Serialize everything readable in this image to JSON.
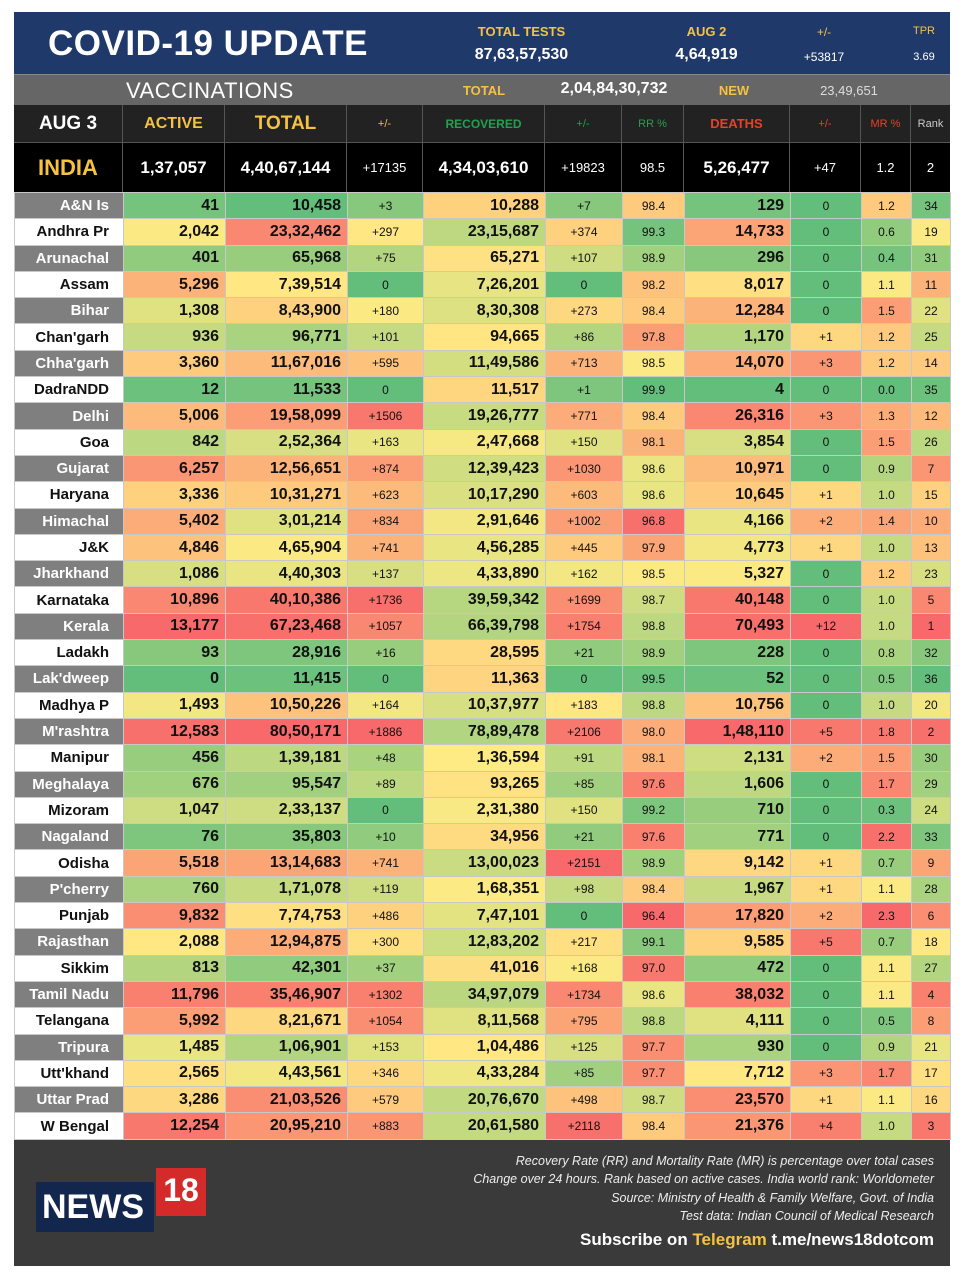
{
  "header": {
    "title": "COVID-19 UPDATE",
    "total_tests_label": "TOTAL TESTS",
    "total_tests": "87,63,57,530",
    "day_label": "AUG 2",
    "day_tests": "4,64,919",
    "change_label": "+/-",
    "change": "+53817",
    "tpr_label": "TPR",
    "tpr": "3.69"
  },
  "vaccinations": {
    "label": "VACCINATIONS",
    "total_label": "TOTAL",
    "total": "2,04,84,30,732",
    "new_label": "NEW",
    "new": "23,49,651"
  },
  "columns": {
    "date": "AUG 3",
    "active": "ACTIVE",
    "total": "TOTAL",
    "change1": "+/-",
    "recovered": "RECOVERED",
    "change2": "+/-",
    "rr": "RR %",
    "deaths": "DEATHS",
    "change3": "+/-",
    "mr": "MR %",
    "rank": "Rank"
  },
  "india": [
    "INDIA",
    "1,37,057",
    "4,40,67,144",
    "+17135",
    "4,34,03,610",
    "+19823",
    "98.5",
    "5,26,477",
    "+47",
    "1.2",
    "2"
  ],
  "rows": [
    [
      "A&N Is",
      "41",
      "10,458",
      "+3",
      "10,288",
      "+7",
      "98.4",
      "129",
      "0",
      "1.2",
      "34"
    ],
    [
      "Andhra Pr",
      "2,042",
      "23,32,462",
      "+297",
      "23,15,687",
      "+374",
      "99.3",
      "14,733",
      "0",
      "0.6",
      "19"
    ],
    [
      "Arunachal",
      "401",
      "65,968",
      "+75",
      "65,271",
      "+107",
      "98.9",
      "296",
      "0",
      "0.4",
      "31"
    ],
    [
      "Assam",
      "5,296",
      "7,39,514",
      "0",
      "7,26,201",
      "0",
      "98.2",
      "8,017",
      "0",
      "1.1",
      "11"
    ],
    [
      "Bihar",
      "1,308",
      "8,43,900",
      "+180",
      "8,30,308",
      "+273",
      "98.4",
      "12,284",
      "0",
      "1.5",
      "22"
    ],
    [
      "Chan'garh",
      "936",
      "96,771",
      "+101",
      "94,665",
      "+86",
      "97.8",
      "1,170",
      "+1",
      "1.2",
      "25"
    ],
    [
      "Chha'garh",
      "3,360",
      "11,67,016",
      "+595",
      "11,49,586",
      "+713",
      "98.5",
      "14,070",
      "+3",
      "1.2",
      "14"
    ],
    [
      "DadraNDD",
      "12",
      "11,533",
      "0",
      "11,517",
      "+1",
      "99.9",
      "4",
      "0",
      "0.0",
      "35"
    ],
    [
      "Delhi",
      "5,006",
      "19,58,099",
      "+1506",
      "19,26,777",
      "+771",
      "98.4",
      "26,316",
      "+3",
      "1.3",
      "12"
    ],
    [
      "Goa",
      "842",
      "2,52,364",
      "+163",
      "2,47,668",
      "+150",
      "98.1",
      "3,854",
      "0",
      "1.5",
      "26"
    ],
    [
      "Gujarat",
      "6,257",
      "12,56,651",
      "+874",
      "12,39,423",
      "+1030",
      "98.6",
      "10,971",
      "0",
      "0.9",
      "7"
    ],
    [
      "Haryana",
      "3,336",
      "10,31,271",
      "+623",
      "10,17,290",
      "+603",
      "98.6",
      "10,645",
      "+1",
      "1.0",
      "15"
    ],
    [
      "Himachal",
      "5,402",
      "3,01,214",
      "+834",
      "2,91,646",
      "+1002",
      "96.8",
      "4,166",
      "+2",
      "1.4",
      "10"
    ],
    [
      "J&K",
      "4,846",
      "4,65,904",
      "+741",
      "4,56,285",
      "+445",
      "97.9",
      "4,773",
      "+1",
      "1.0",
      "13"
    ],
    [
      "Jharkhand",
      "1,086",
      "4,40,303",
      "+137",
      "4,33,890",
      "+162",
      "98.5",
      "5,327",
      "0",
      "1.2",
      "23"
    ],
    [
      "Karnataka",
      "10,896",
      "40,10,386",
      "+1736",
      "39,59,342",
      "+1699",
      "98.7",
      "40,148",
      "0",
      "1.0",
      "5"
    ],
    [
      "Kerala",
      "13,177",
      "67,23,468",
      "+1057",
      "66,39,798",
      "+1754",
      "98.8",
      "70,493",
      "+12",
      "1.0",
      "1"
    ],
    [
      "Ladakh",
      "93",
      "28,916",
      "+16",
      "28,595",
      "+21",
      "98.9",
      "228",
      "0",
      "0.8",
      "32"
    ],
    [
      "Lak'dweep",
      "0",
      "11,415",
      "0",
      "11,363",
      "0",
      "99.5",
      "52",
      "0",
      "0.5",
      "36"
    ],
    [
      "Madhya P",
      "1,493",
      "10,50,226",
      "+164",
      "10,37,977",
      "+183",
      "98.8",
      "10,756",
      "0",
      "1.0",
      "20"
    ],
    [
      "M'rashtra",
      "12,583",
      "80,50,171",
      "+1886",
      "78,89,478",
      "+2106",
      "98.0",
      "1,48,110",
      "+5",
      "1.8",
      "2"
    ],
    [
      "Manipur",
      "456",
      "1,39,181",
      "+48",
      "1,36,594",
      "+91",
      "98.1",
      "2,131",
      "+2",
      "1.5",
      "30"
    ],
    [
      "Meghalaya",
      "676",
      "95,547",
      "+89",
      "93,265",
      "+85",
      "97.6",
      "1,606",
      "0",
      "1.7",
      "29"
    ],
    [
      "Mizoram",
      "1,047",
      "2,33,137",
      "0",
      "2,31,380",
      "+150",
      "99.2",
      "710",
      "0",
      "0.3",
      "24"
    ],
    [
      "Nagaland",
      "76",
      "35,803",
      "+10",
      "34,956",
      "+21",
      "97.6",
      "771",
      "0",
      "2.2",
      "33"
    ],
    [
      "Odisha",
      "5,518",
      "13,14,683",
      "+741",
      "13,00,023",
      "+2151",
      "98.9",
      "9,142",
      "+1",
      "0.7",
      "9"
    ],
    [
      "P'cherry",
      "760",
      "1,71,078",
      "+119",
      "1,68,351",
      "+98",
      "98.4",
      "1,967",
      "+1",
      "1.1",
      "28"
    ],
    [
      "Punjab",
      "9,832",
      "7,74,753",
      "+486",
      "7,47,101",
      "0",
      "96.4",
      "17,820",
      "+2",
      "2.3",
      "6"
    ],
    [
      "Rajasthan",
      "2,088",
      "12,94,875",
      "+300",
      "12,83,202",
      "+217",
      "99.1",
      "9,585",
      "+5",
      "0.7",
      "18"
    ],
    [
      "Sikkim",
      "813",
      "42,301",
      "+37",
      "41,016",
      "+168",
      "97.0",
      "472",
      "0",
      "1.1",
      "27"
    ],
    [
      "Tamil Nadu",
      "11,796",
      "35,46,907",
      "+1302",
      "34,97,079",
      "+1734",
      "98.6",
      "38,032",
      "0",
      "1.1",
      "4"
    ],
    [
      "Telangana",
      "5,992",
      "8,21,671",
      "+1054",
      "8,11,568",
      "+795",
      "98.8",
      "4,111",
      "0",
      "0.5",
      "8"
    ],
    [
      "Tripura",
      "1,485",
      "1,06,901",
      "+153",
      "1,04,486",
      "+125",
      "97.7",
      "930",
      "0",
      "0.9",
      "21"
    ],
    [
      "Utt'khand",
      "2,565",
      "4,43,561",
      "+346",
      "4,33,284",
      "+85",
      "97.7",
      "7,712",
      "+3",
      "1.7",
      "17"
    ],
    [
      "Uttar Prad",
      "3,286",
      "21,03,526",
      "+579",
      "20,76,670",
      "+498",
      "98.7",
      "23,570",
      "+1",
      "1.1",
      "16"
    ],
    [
      "W Bengal",
      "12,254",
      "20,95,210",
      "+883",
      "20,61,580",
      "+2118",
      "98.4",
      "21,376",
      "+4",
      "1.0",
      "3"
    ]
  ],
  "footer": {
    "logo": "NEWS 18",
    "notes": [
      "Recovery Rate (RR) and Mortality Rate (MR) is percentage over total cases",
      "Change over 24 hours. Rank based on active cases. India world rank: Worldometer",
      "Source: Ministry of Health & Family Welfare, Govt. of India",
      "Test data: Indian Council of Medical Research"
    ],
    "subscribe": "Subscribe on",
    "telegram": "Telegram",
    "link": "t.me/news18dotcom"
  },
  "colors": {
    "green": "#63be7b",
    "yellow": "#ffeb84",
    "red": "#f8696b",
    "header_blue": "#1f3a6a",
    "gold": "#f5c242"
  }
}
